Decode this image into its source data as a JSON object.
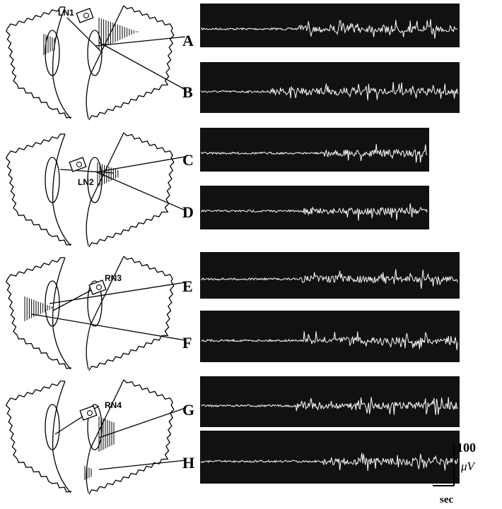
{
  "nerve_labels": [
    "LN1",
    "LN2",
    "RN3",
    "RN4"
  ],
  "trace_labels": [
    "A",
    "B",
    "C",
    "D",
    "E",
    "F",
    "G",
    "H"
  ],
  "scale": {
    "amplitude": "100",
    "amplitude_unit": "μV",
    "time_unit": "sec"
  }
}
